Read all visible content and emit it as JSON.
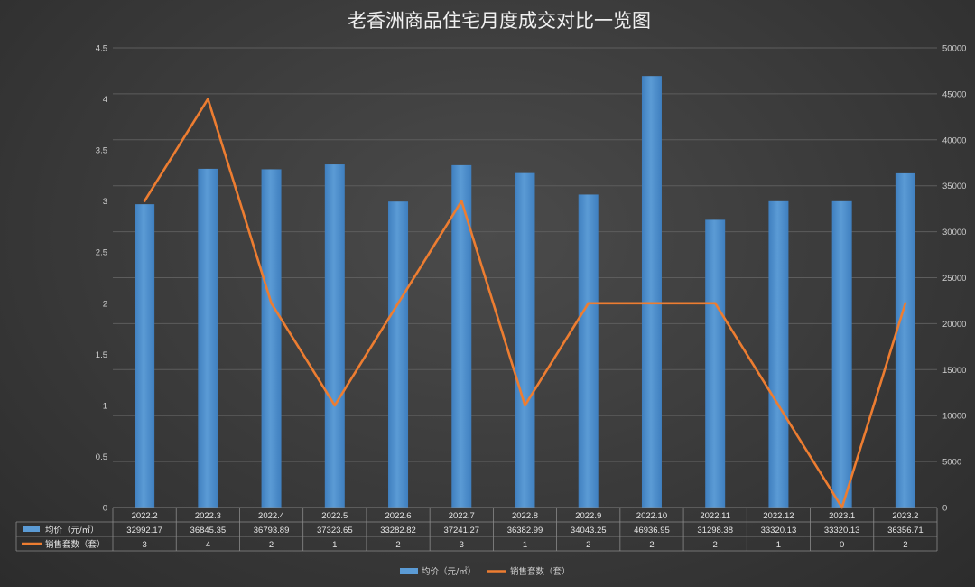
{
  "chart_data": {
    "type": "bar",
    "title": "老香洲商品住宅月度成交对比一览图",
    "categories": [
      "2022.2",
      "2022.3",
      "2022.4",
      "2022.5",
      "2022.6",
      "2022.7",
      "2022.8",
      "2022.9",
      "2022.10",
      "2022.11",
      "2022.12",
      "2023.1",
      "2023.2"
    ],
    "series": [
      {
        "name": "均价（元/㎡）",
        "type": "bar",
        "axis": "right",
        "color": "#5b9bd5",
        "values": [
          32992.17,
          36845.35,
          36793.89,
          37323.65,
          33282.82,
          37241.27,
          36382.99,
          34043.25,
          46936.95,
          31298.38,
          33320.13,
          33320.13,
          36356.71
        ],
        "value_labels": [
          "32992.17",
          "36845.35",
          "36793.89",
          "37323.65",
          "33282.82",
          "37241.27",
          "36382.99",
          "34043.25",
          "46936.95",
          "31298.38",
          "33320.13",
          "33320.13",
          "36356.71"
        ]
      },
      {
        "name": "销售套数（套）",
        "type": "line",
        "axis": "left",
        "color": "#ed7d31",
        "values": [
          3,
          4,
          2,
          1,
          2,
          3,
          1,
          2,
          2,
          2,
          1,
          0,
          2
        ],
        "value_labels": [
          "3",
          "4",
          "2",
          "1",
          "2",
          "3",
          "1",
          "2",
          "2",
          "2",
          "1",
          "0",
          "2"
        ]
      }
    ],
    "left_axis": {
      "ylim": [
        0,
        4.5
      ],
      "ticks": [
        "0",
        "0.5",
        "1",
        "1.5",
        "2",
        "2.5",
        "3",
        "3.5",
        "4",
        "4.5"
      ]
    },
    "right_axis": {
      "ylim": [
        0,
        50000
      ],
      "ticks": [
        "0",
        "5000",
        "10000",
        "15000",
        "20000",
        "25000",
        "30000",
        "35000",
        "40000",
        "45000",
        "50000"
      ]
    },
    "grid": true,
    "legend_position": "bottom-center",
    "data_table": true
  }
}
